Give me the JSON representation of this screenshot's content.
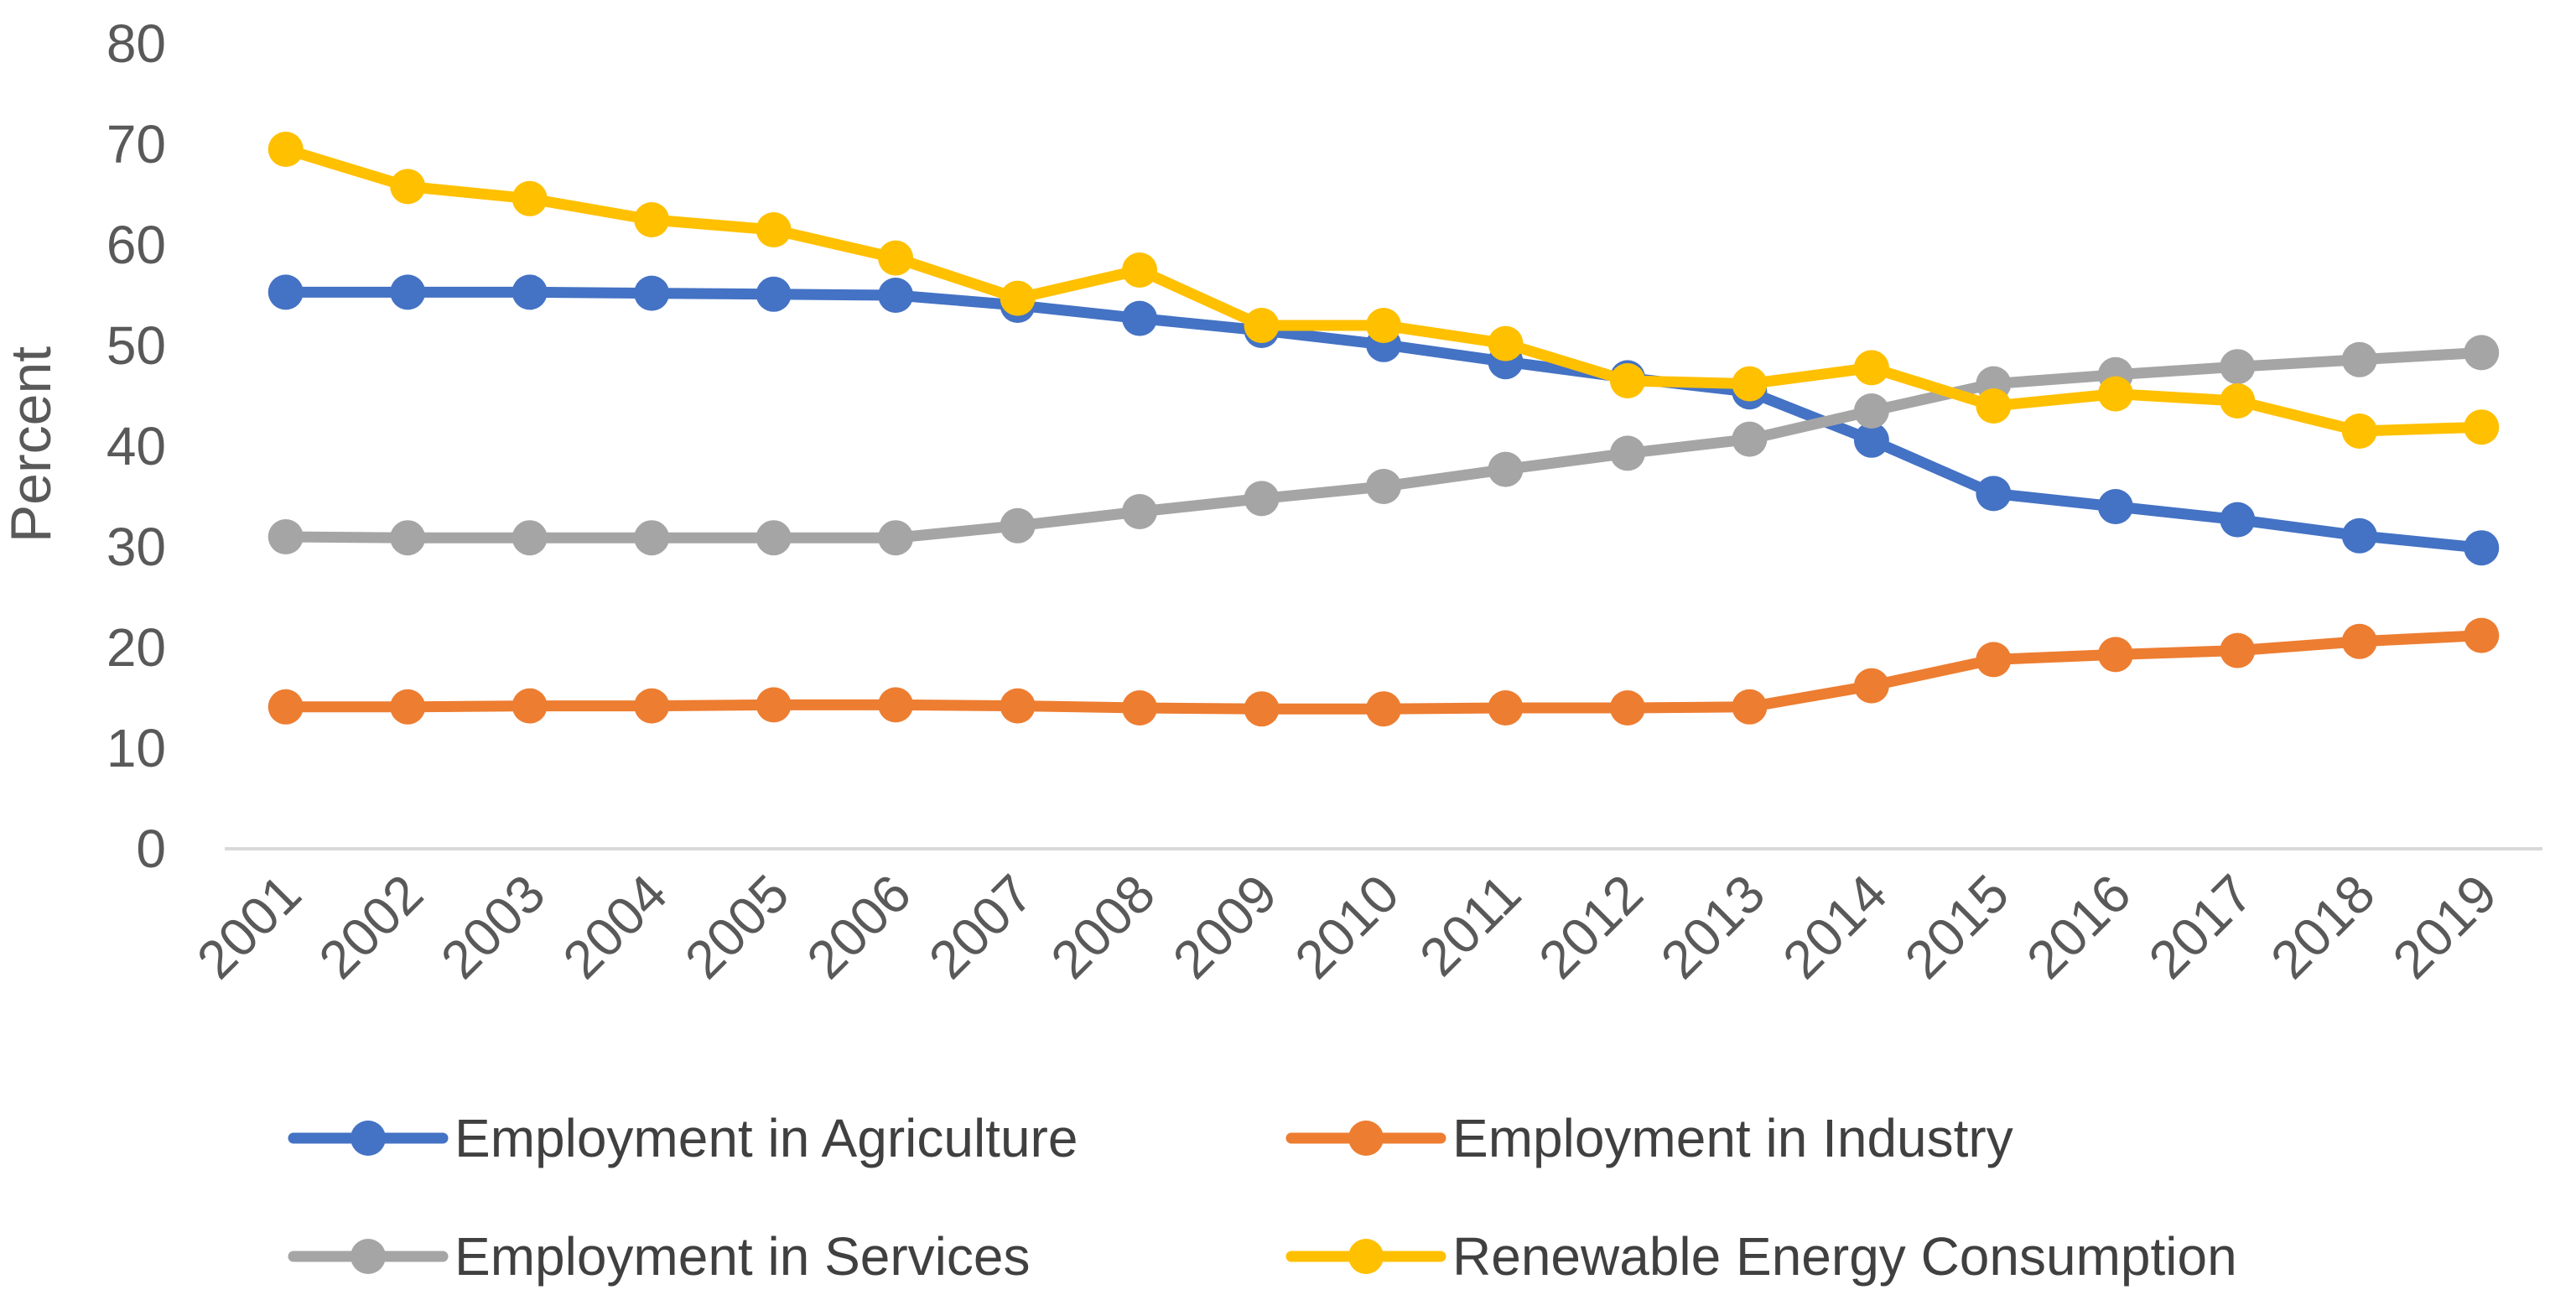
{
  "chart_data": {
    "type": "line",
    "title": "",
    "xlabel": "",
    "ylabel": "Percent",
    "ylim": [
      0,
      80
    ],
    "yticks": [
      "0",
      "10",
      "20",
      "30",
      "40",
      "50",
      "60",
      "70",
      "80"
    ],
    "grid": false,
    "legend_position": "bottom",
    "categories": [
      "2001",
      "2002",
      "2003",
      "2004",
      "2005",
      "2006",
      "2007",
      "2008",
      "2009",
      "2010",
      "2011",
      "2012",
      "2013",
      "2014",
      "2015",
      "2016",
      "2017",
      "2018",
      "2019"
    ],
    "series": [
      {
        "name": "Employment in Agriculture",
        "color": "#4472C4",
        "values": [
          55.3,
          55.3,
          55.3,
          55.2,
          55.1,
          55.0,
          54.0,
          52.7,
          51.5,
          50.1,
          48.4,
          46.8,
          45.4,
          40.6,
          35.3,
          34.0,
          32.7,
          31.1,
          29.9
        ]
      },
      {
        "name": "Employment in Industry",
        "color": "#ED7D31",
        "values": [
          14.1,
          14.1,
          14.2,
          14.2,
          14.3,
          14.3,
          14.2,
          14.0,
          13.9,
          13.9,
          14.0,
          14.0,
          14.1,
          16.2,
          18.8,
          19.3,
          19.7,
          20.6,
          21.2
        ]
      },
      {
        "name": "Employment in Services",
        "color": "#A5A5A5",
        "values": [
          31.0,
          30.9,
          30.9,
          30.9,
          30.9,
          30.9,
          32.1,
          33.5,
          34.8,
          36.0,
          37.7,
          39.3,
          40.7,
          43.5,
          46.2,
          47.1,
          47.9,
          48.6,
          49.3
        ]
      },
      {
        "name": "Renewable Energy Consumption",
        "color": "#FFC000",
        "values": [
          69.5,
          65.8,
          64.6,
          62.5,
          61.5,
          58.7,
          54.7,
          57.5,
          52.0,
          52.0,
          50.2,
          46.5,
          46.2,
          47.8,
          44.0,
          45.2,
          44.5,
          41.5,
          41.9
        ]
      }
    ]
  }
}
